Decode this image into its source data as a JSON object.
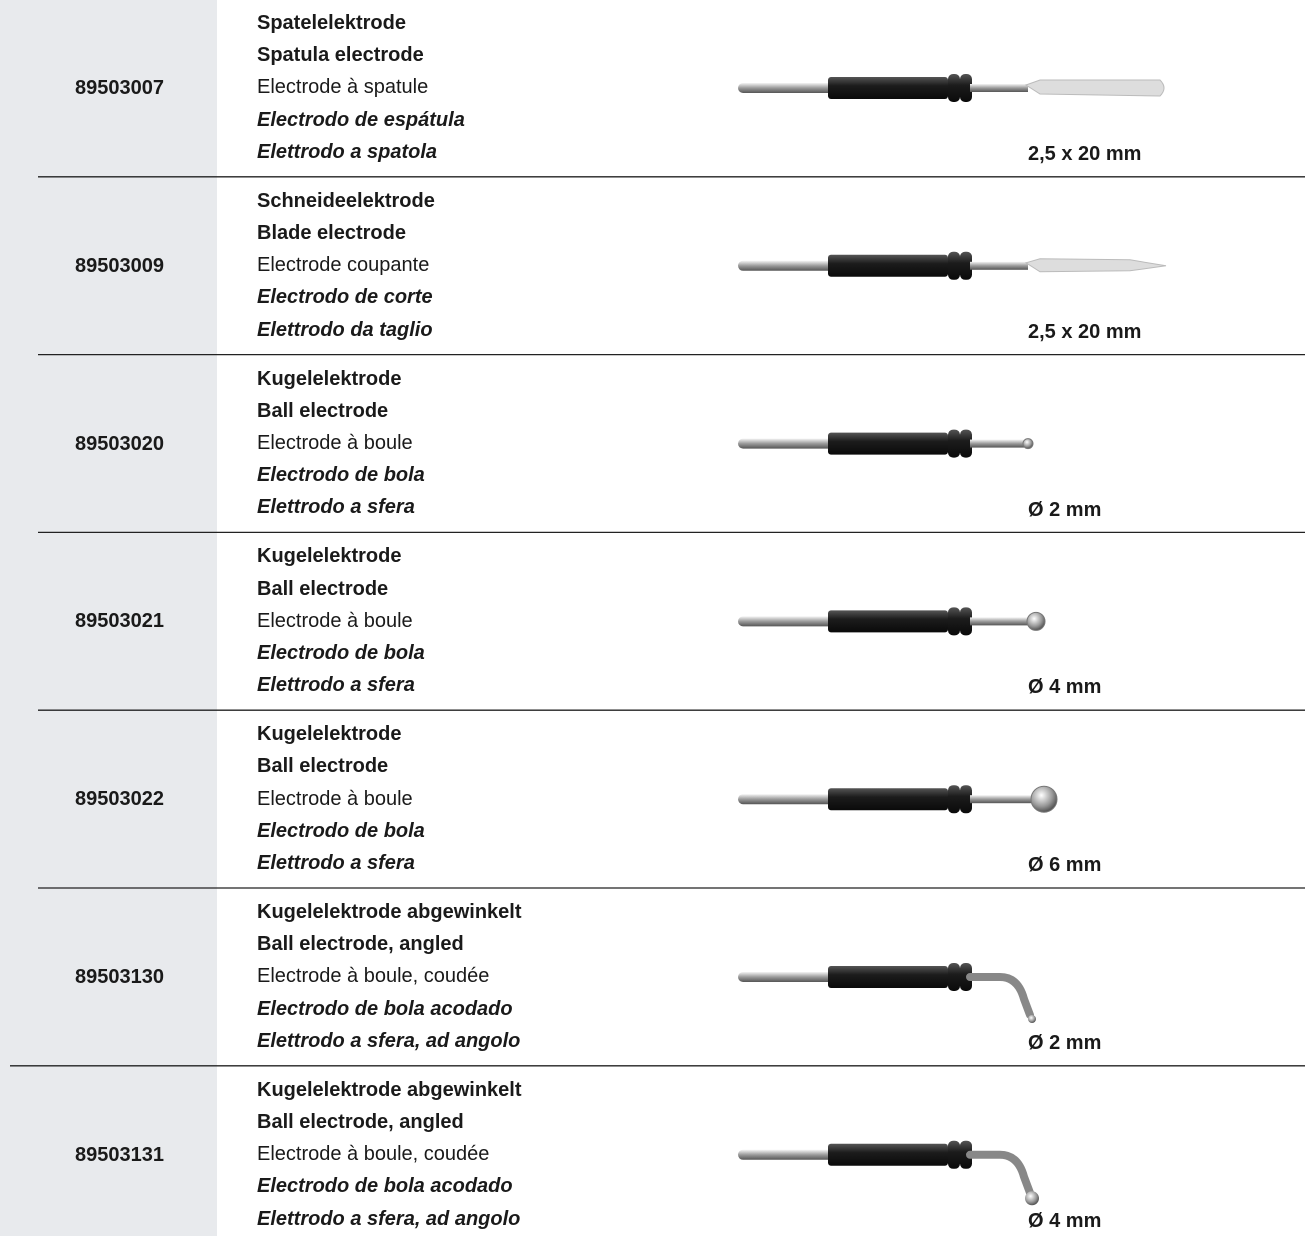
{
  "products": [
    {
      "code": "89503007",
      "names": [
        "Spatelelektrode",
        "Spatula electrode",
        "Electrode à spatule",
        "Electrodo de espátula",
        "Elettrodo a spatola"
      ],
      "size": "2,5 x 20 mm"
    },
    {
      "code": "89503009",
      "names": [
        "Schneideelektrode",
        "Blade electrode",
        "Electrode coupante",
        "Electrodo de corte",
        "Elettrodo da taglio"
      ],
      "size": "2,5 x 20 mm"
    },
    {
      "code": "89503020",
      "names": [
        "Kugelelektrode",
        "Ball electrode",
        "Electrode à boule",
        "Electrodo de bola",
        "Elettrodo a sfera"
      ],
      "size": "Ø 2 mm"
    },
    {
      "code": "89503021",
      "names": [
        "Kugelelektrode",
        "Ball electrode",
        "Electrode à boule",
        "Electrodo de bola",
        "Elettrodo a sfera"
      ],
      "size": "Ø 4 mm"
    },
    {
      "code": "89503022",
      "names": [
        "Kugelelektrode",
        "Ball electrode",
        "Electrode à boule",
        "Electrodo de bola",
        "Elettrodo a sfera"
      ],
      "size": "Ø 6 mm"
    },
    {
      "code": "89503130",
      "names": [
        "Kugelelektrode abgewinkelt",
        "Ball electrode, angled",
        "Electrode à boule, coudée",
        "Electrodo de bola acodado",
        "Elettrodo a sfera, ad angolo"
      ],
      "size": "Ø 2 mm"
    },
    {
      "code": "89503131",
      "names": [
        "Kugelelektrode abgewinkelt",
        "Ball electrode, angled",
        "Electrode à boule, coudée",
        "Electrodo de bola acodado",
        "Elettrodo a sfera, ad angolo"
      ],
      "size": "Ø 4 mm"
    }
  ]
}
